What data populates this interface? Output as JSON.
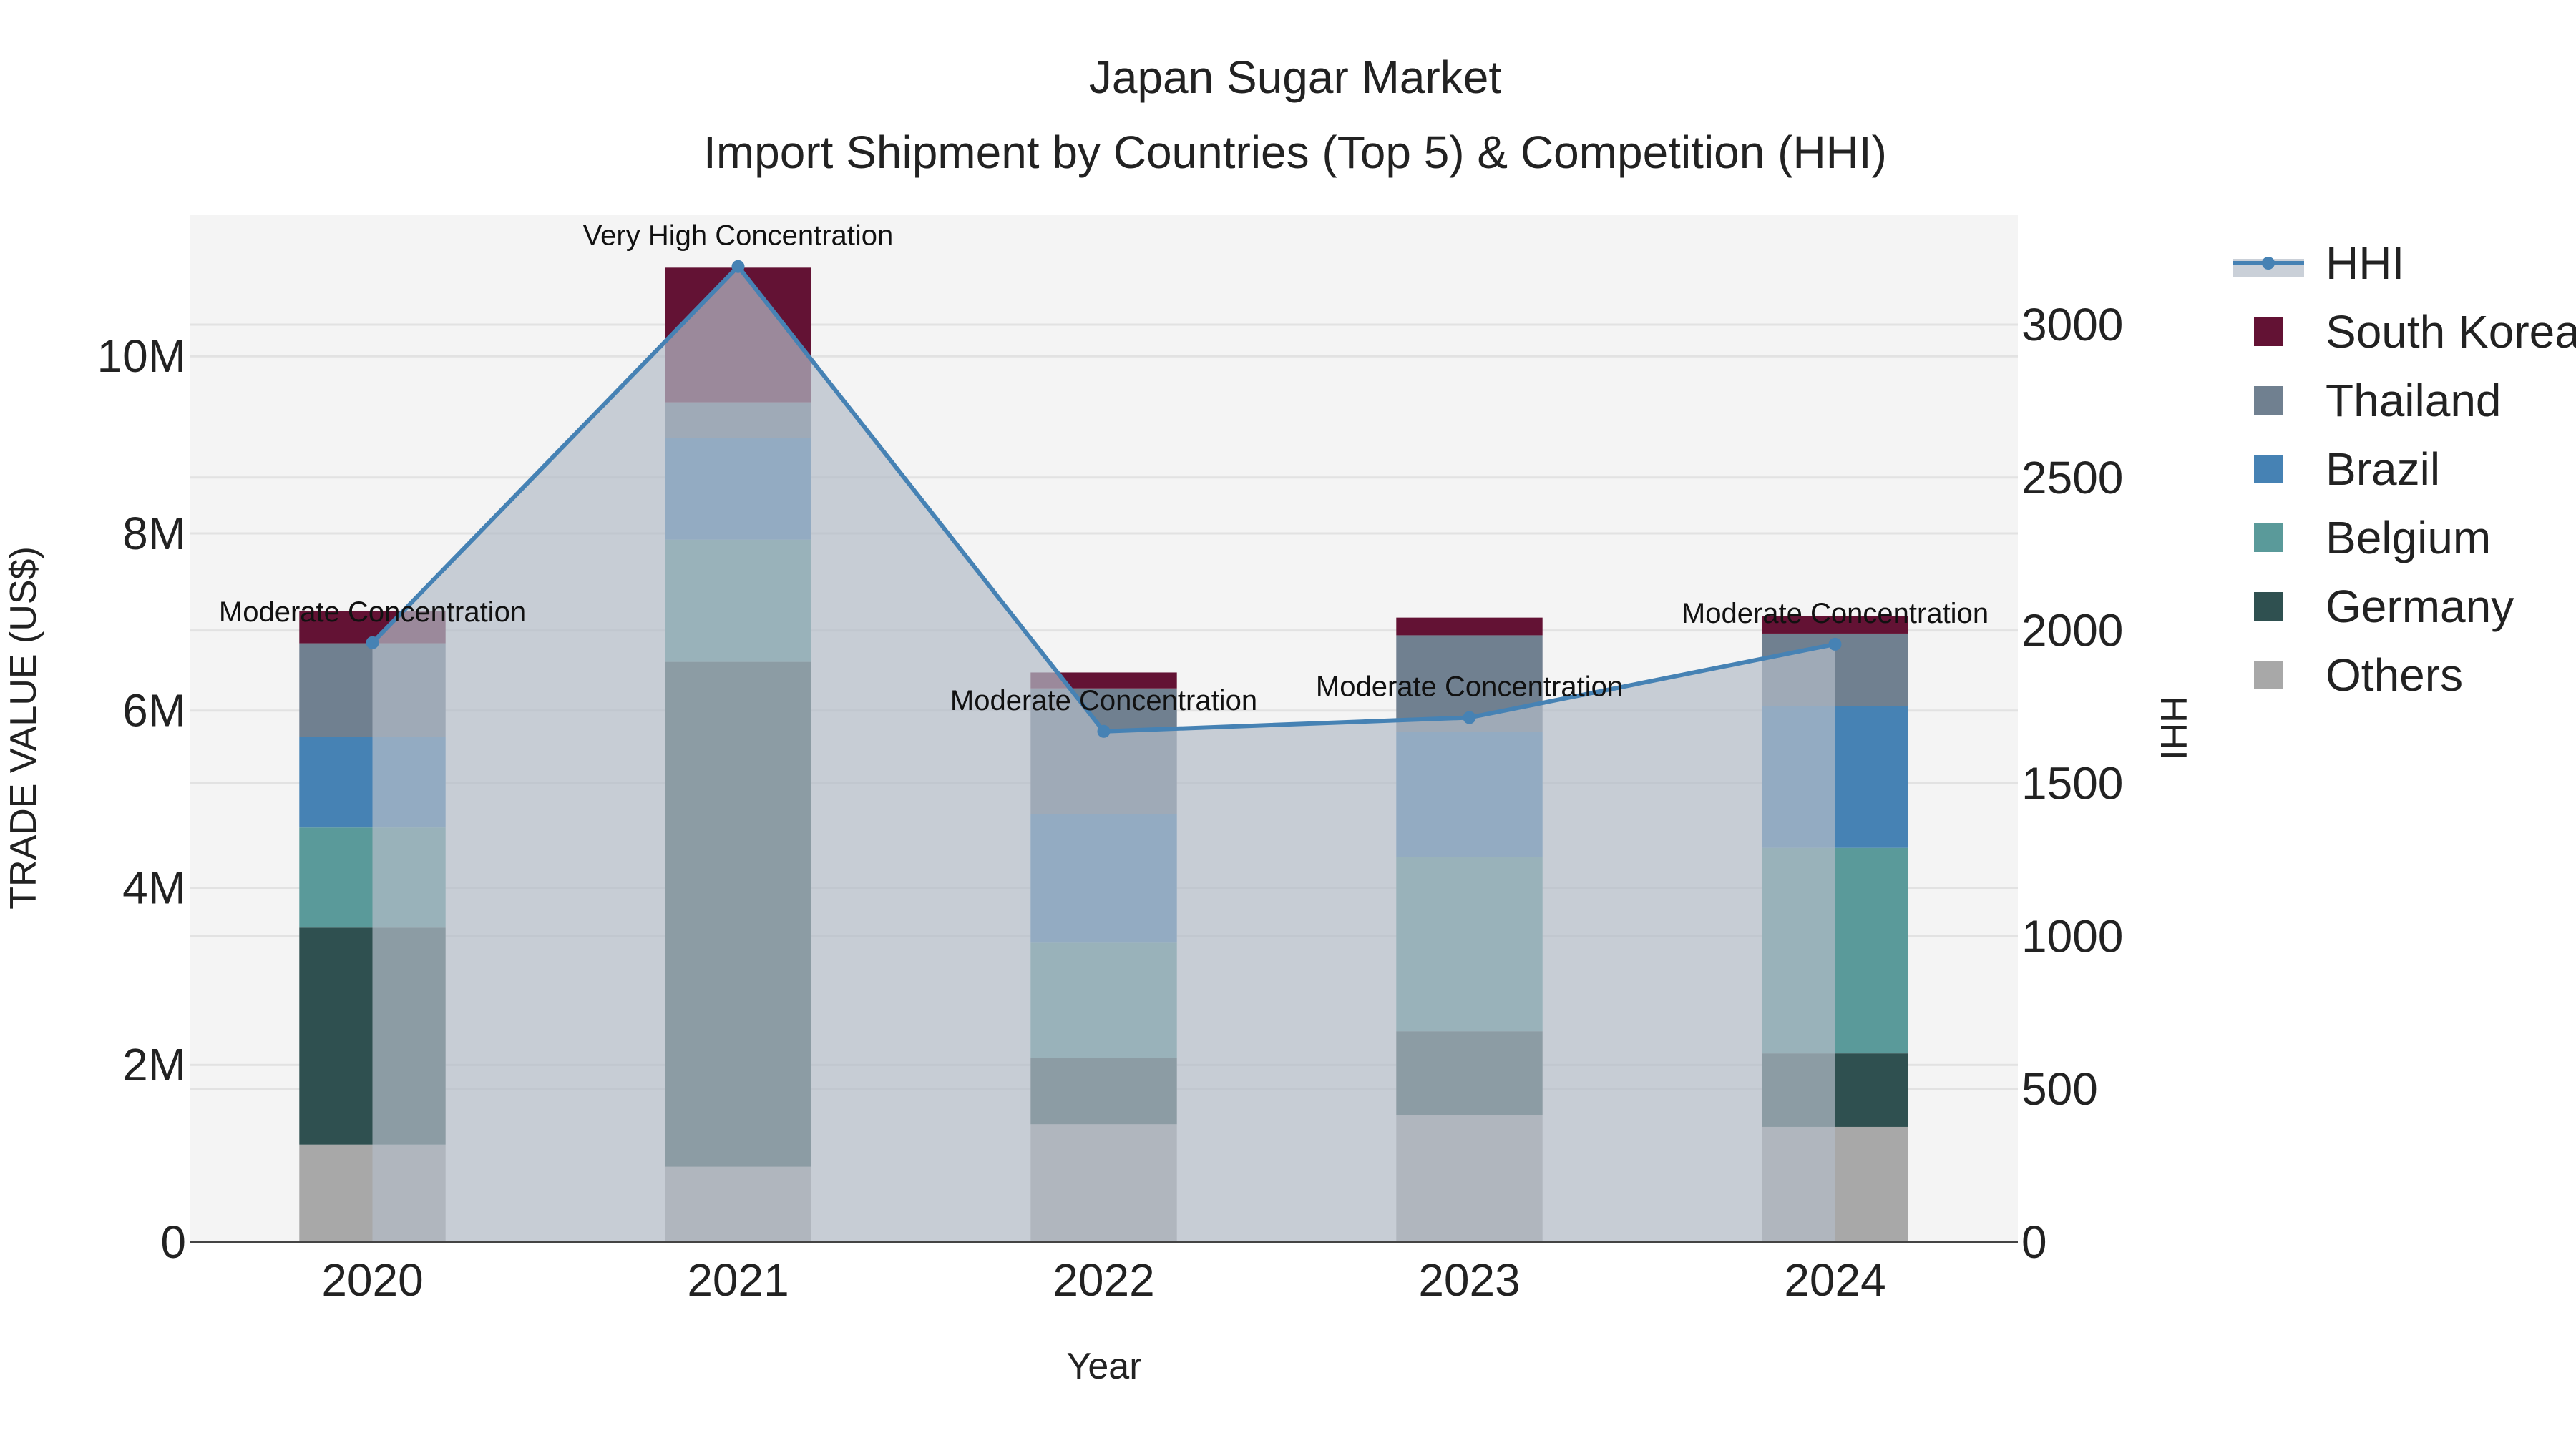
{
  "chart_data": {
    "type": "bar",
    "title": "Japan Sugar Market",
    "subtitle": "Import Shipment by Countries (Top 5) & Competition (HHI)",
    "xlabel": "Year",
    "ylabel": "TRADE VALUE (US$)",
    "y2label": "HHI",
    "categories": [
      "2020",
      "2021",
      "2022",
      "2023",
      "2024"
    ],
    "ylim": [
      0,
      11600000
    ],
    "y2lim": [
      0,
      3360
    ],
    "y_ticks": [
      {
        "value": 0,
        "label": "0"
      },
      {
        "value": 2000000,
        "label": "2M"
      },
      {
        "value": 4000000,
        "label": "4M"
      },
      {
        "value": 6000000,
        "label": "6M"
      },
      {
        "value": 8000000,
        "label": "8M"
      },
      {
        "value": 10000000,
        "label": "10M"
      }
    ],
    "y2_ticks": [
      {
        "value": 0,
        "label": "0"
      },
      {
        "value": 500,
        "label": "500"
      },
      {
        "value": 1000,
        "label": "1000"
      },
      {
        "value": 1500,
        "label": "1500"
      },
      {
        "value": 2000,
        "label": "2000"
      },
      {
        "value": 2500,
        "label": "2500"
      },
      {
        "value": 3000,
        "label": "3000"
      }
    ],
    "barmode": "stack",
    "series": [
      {
        "name": "Others",
        "color": "#a8a8a8",
        "values": [
          1100000,
          850000,
          1330000,
          1430000,
          1300000
        ]
      },
      {
        "name": "Germany",
        "color": "#2f5050",
        "values": [
          2450000,
          5700000,
          750000,
          950000,
          830000
        ]
      },
      {
        "name": "Belgium",
        "color": "#5a9a9a",
        "values": [
          1130000,
          1380000,
          1300000,
          1970000,
          2320000
        ]
      },
      {
        "name": "Brazil",
        "color": "#4682b4",
        "values": [
          1020000,
          1150000,
          1450000,
          1410000,
          1600000
        ]
      },
      {
        "name": "Thailand",
        "color": "#708090",
        "values": [
          1060000,
          400000,
          1420000,
          1090000,
          820000
        ]
      },
      {
        "name": "South Korea",
        "color": "#631234",
        "values": [
          360000,
          1520000,
          180000,
          200000,
          200000
        ]
      }
    ],
    "hhi": {
      "name": "HHI",
      "color": "#4682b4",
      "fill": "rgba(180,188,200,0.70)",
      "values": [
        1960,
        3190,
        1670,
        1715,
        1955
      ],
      "annotations": [
        "Moderate Concentration",
        "Very High Concentration",
        "Moderate Concentration",
        "Moderate Concentration",
        "Moderate Concentration"
      ]
    },
    "legend": [
      "HHI",
      "South Korea",
      "Thailand",
      "Brazil",
      "Belgium",
      "Germany",
      "Others"
    ],
    "legend_position": "top-right",
    "grid": true
  }
}
